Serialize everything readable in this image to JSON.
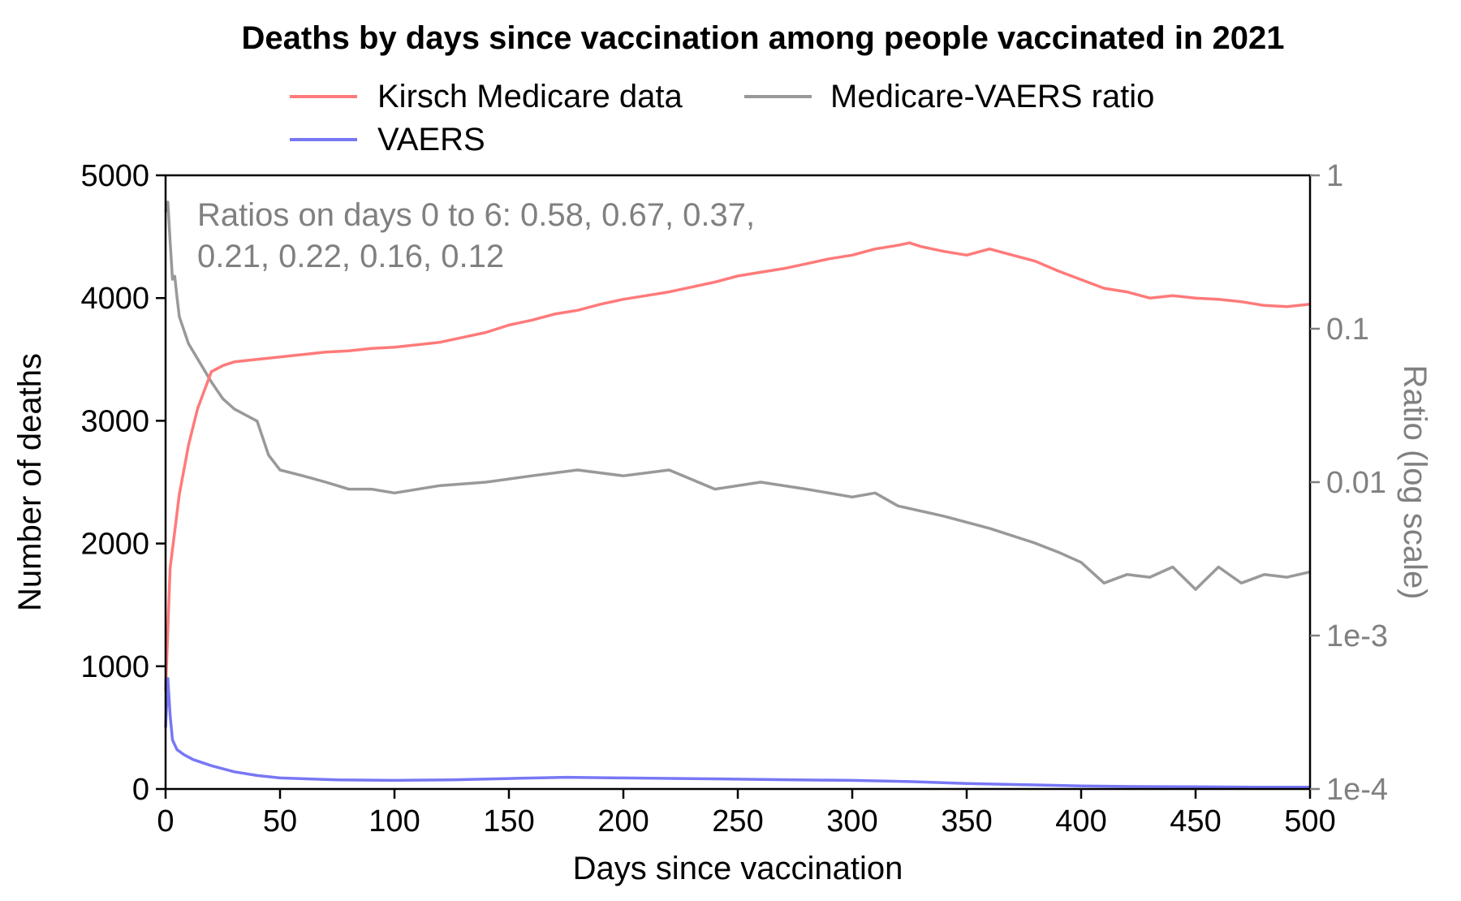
{
  "chart_data": {
    "type": "line",
    "title": "Deaths by days since vaccination among people vaccinated in 2021",
    "xlabel": "Days since vaccination",
    "ylabel": "Number of deaths",
    "y2label": "Ratio (log scale)",
    "xlim": [
      0,
      500
    ],
    "ylim": [
      0,
      5000
    ],
    "y2lim": [
      0.0001,
      1
    ],
    "y2scale": "log",
    "xticks": [
      0,
      50,
      100,
      150,
      200,
      250,
      300,
      350,
      400,
      450,
      500
    ],
    "yticks": [
      0,
      1000,
      2000,
      3000,
      4000,
      5000
    ],
    "y2ticks": [
      {
        "value": 0.0001,
        "label": "1e-4"
      },
      {
        "value": 0.001,
        "label": "1e-3"
      },
      {
        "value": 0.01,
        "label": "0.01"
      },
      {
        "value": 0.1,
        "label": "0.1"
      },
      {
        "value": 1,
        "label": "1"
      }
    ],
    "legend": {
      "placement": "top-center",
      "entries": [
        "Kirsch Medicare data",
        "Medicare-VAERS ratio",
        "VAERS"
      ]
    },
    "annotation": {
      "lines": [
        "Ratios on days 0 to 6: 0.58, 0.67, 0.37,",
        "0.21, 0.22, 0.16, 0.12"
      ]
    },
    "series": [
      {
        "name": "Kirsch Medicare data",
        "axis": "left",
        "color": "#ff7a7a",
        "x": [
          0,
          2,
          4,
          6,
          8,
          10,
          12,
          14,
          16,
          18,
          20,
          25,
          30,
          40,
          50,
          60,
          70,
          80,
          90,
          100,
          110,
          120,
          130,
          140,
          150,
          160,
          170,
          180,
          190,
          200,
          210,
          220,
          230,
          240,
          250,
          260,
          270,
          280,
          290,
          300,
          310,
          320,
          325,
          330,
          340,
          350,
          360,
          370,
          380,
          390,
          400,
          410,
          420,
          430,
          440,
          450,
          460,
          470,
          480,
          490,
          500
        ],
        "values": [
          800,
          1800,
          2100,
          2400,
          2600,
          2800,
          2950,
          3100,
          3200,
          3300,
          3400,
          3450,
          3480,
          3500,
          3520,
          3540,
          3560,
          3570,
          3590,
          3600,
          3620,
          3640,
          3680,
          3720,
          3780,
          3820,
          3870,
          3900,
          3950,
          3990,
          4020,
          4050,
          4090,
          4130,
          4180,
          4210,
          4240,
          4280,
          4320,
          4350,
          4400,
          4430,
          4450,
          4420,
          4380,
          4350,
          4400,
          4350,
          4300,
          4220,
          4150,
          4080,
          4050,
          4000,
          4020,
          4000,
          3990,
          3970,
          3940,
          3930,
          3950
        ]
      },
      {
        "name": "Medicare-VAERS ratio",
        "axis": "right",
        "color": "#999999",
        "x": [
          0,
          1,
          2,
          3,
          4,
          5,
          6,
          10,
          15,
          20,
          25,
          30,
          40,
          45,
          50,
          60,
          70,
          80,
          90,
          100,
          120,
          140,
          160,
          180,
          200,
          220,
          240,
          260,
          280,
          300,
          310,
          320,
          340,
          360,
          380,
          390,
          400,
          410,
          420,
          430,
          440,
          450,
          460,
          470,
          480,
          490,
          500
        ],
        "values": [
          0.58,
          0.67,
          0.37,
          0.21,
          0.22,
          0.16,
          0.12,
          0.08,
          0.06,
          0.045,
          0.035,
          0.03,
          0.025,
          0.015,
          0.012,
          0.011,
          0.01,
          0.009,
          0.009,
          0.0085,
          0.0095,
          0.01,
          0.011,
          0.012,
          0.011,
          0.012,
          0.009,
          0.01,
          0.009,
          0.008,
          0.0085,
          0.007,
          0.006,
          0.005,
          0.004,
          0.0035,
          0.003,
          0.0022,
          0.0025,
          0.0024,
          0.0028,
          0.002,
          0.0028,
          0.0022,
          0.0025,
          0.0024,
          0.0026
        ]
      },
      {
        "name": "VAERS",
        "axis": "left",
        "color": "#7777f5",
        "x": [
          0,
          1,
          2,
          3,
          5,
          8,
          12,
          20,
          30,
          40,
          50,
          75,
          100,
          125,
          150,
          175,
          200,
          225,
          250,
          275,
          300,
          325,
          350,
          375,
          400,
          425,
          450,
          475,
          500
        ],
        "values": [
          500,
          900,
          600,
          400,
          320,
          280,
          240,
          190,
          140,
          110,
          90,
          75,
          70,
          75,
          85,
          95,
          90,
          85,
          80,
          75,
          70,
          60,
          45,
          35,
          25,
          20,
          18,
          15,
          15
        ]
      }
    ]
  }
}
